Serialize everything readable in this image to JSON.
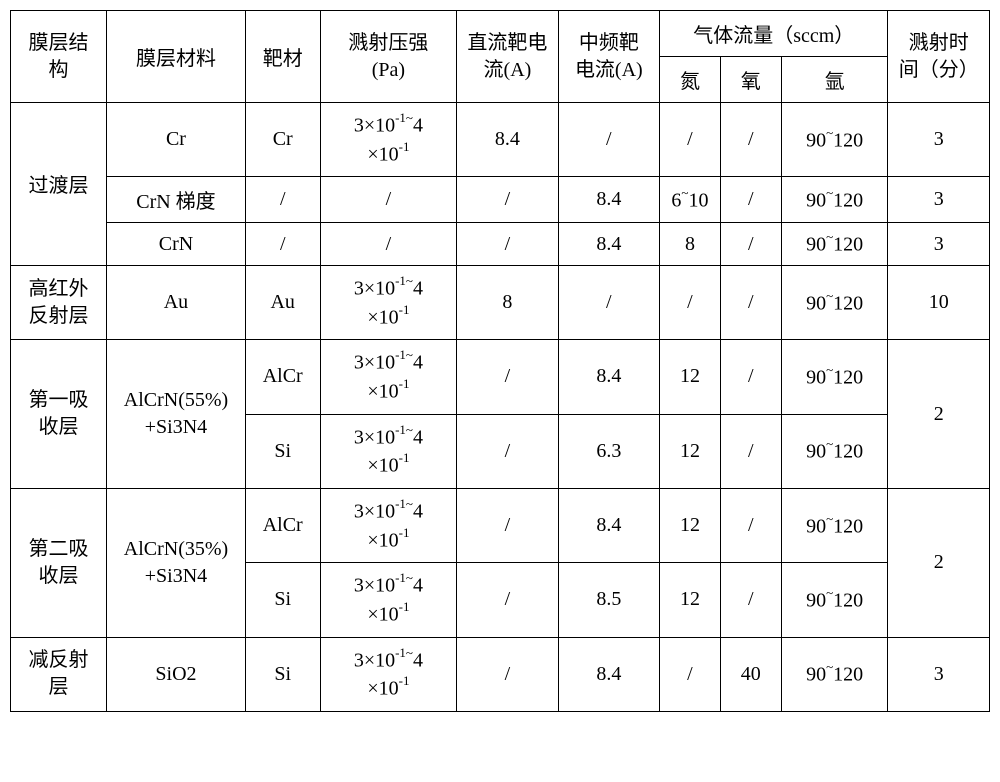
{
  "table": {
    "header": {
      "structure": "膜层结\n构",
      "material": "膜层材料",
      "target": "靶材",
      "pressure": "溅射压强\n(Pa)",
      "dc_current": "直流靶电\n流(A)",
      "mf_current": "中频靶\n电流(A)",
      "gas_flow_header": "气体流量（sccm）",
      "nitrogen": "氮",
      "oxygen": "氧",
      "argon": "氩",
      "time": "溅射时\n间（分）"
    },
    "pressure_value_html": "3×10<span class=\"sup\">-1~</span>4<br>×10<span class=\"sup\">-1</span>",
    "rows": [
      {
        "structure": "过渡层",
        "rowspan": 3,
        "subrows": [
          {
            "material": "Cr",
            "target": "Cr",
            "has_pressure": true,
            "dc": "8.4",
            "mf": "/",
            "n": "/",
            "o": "/",
            "ar": "90~120",
            "time": "3"
          },
          {
            "material": "CrN 梯度",
            "target": "/",
            "has_pressure": false,
            "dc": "/",
            "mf": "8.4",
            "n_html": "6<span class=\"sup\">~</span>10",
            "o": "/",
            "ar": "90~120",
            "time": "3"
          },
          {
            "material": "CrN",
            "target": "/",
            "has_pressure": false,
            "dc": "/",
            "mf": "8.4",
            "n": "8",
            "o": "/",
            "ar": "90~120",
            "time": "3"
          }
        ]
      },
      {
        "structure": "高红外\n反射层",
        "rowspan": 1,
        "subrows": [
          {
            "material": "Au",
            "target": "Au",
            "has_pressure": true,
            "dc": "8",
            "mf": "/",
            "n": "/",
            "o": "/",
            "ar": "90~120",
            "time": "10"
          }
        ]
      },
      {
        "structure": "第一吸\n收层",
        "material": "AlCrN(55%)\n+Si3N4",
        "rowspan": 2,
        "time": "2",
        "subrows": [
          {
            "target": "AlCr",
            "has_pressure": true,
            "dc": "/",
            "mf": "8.4",
            "n": "12",
            "o": "/",
            "ar": "90~120"
          },
          {
            "target": "Si",
            "has_pressure": true,
            "dc": "/",
            "mf": "6.3",
            "n": "12",
            "o": "/",
            "ar": "90~120"
          }
        ]
      },
      {
        "structure": "第二吸\n收层",
        "material": "AlCrN(35%)\n+Si3N4",
        "rowspan": 2,
        "time": "2",
        "subrows": [
          {
            "target": "AlCr",
            "has_pressure": true,
            "dc": "/",
            "mf": "8.4",
            "n": "12",
            "o": "/",
            "ar": "90~120"
          },
          {
            "target": "Si",
            "has_pressure": true,
            "dc": "/",
            "mf": "8.5",
            "n": "12",
            "o": "/",
            "ar": "90~120"
          }
        ]
      },
      {
        "structure": "减反射\n层",
        "rowspan": 1,
        "subrows": [
          {
            "material": "SiO2",
            "target": "Si",
            "has_pressure": true,
            "dc": "/",
            "mf": "8.4",
            "n": "/",
            "o": "40",
            "ar": "90~120",
            "time": "3"
          }
        ]
      }
    ],
    "styling": {
      "border_color": "#000000",
      "border_width": 1.5,
      "background_color": "#ffffff",
      "text_color": "#000000",
      "font_size": 20,
      "font_family": "SimSun",
      "argon_range_html": "90<span class=\"sup\">~</span>120"
    }
  }
}
